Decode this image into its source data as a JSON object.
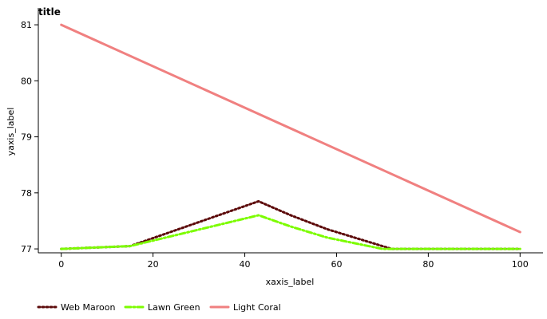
{
  "chart_data": {
    "type": "line",
    "title": "title",
    "xlabel": "xaxis_label",
    "ylabel": "yaxis_label",
    "xlim": [
      -5,
      105
    ],
    "ylim": [
      76.93,
      81.3
    ],
    "xticks": [
      0,
      20,
      40,
      60,
      80,
      100
    ],
    "yticks": [
      77,
      78,
      79,
      80,
      81
    ],
    "grid": false,
    "legend_position": "bottom",
    "series": [
      {
        "name": "Web Maroon",
        "color": "#5c0a0a",
        "style": "dotted",
        "x": [
          0,
          15,
          43,
          50,
          58,
          72,
          100
        ],
        "y": [
          77.0,
          77.05,
          77.85,
          77.6,
          77.35,
          77.0,
          77.0
        ]
      },
      {
        "name": "Lawn Green",
        "color": "#7cfc00",
        "style": "dashdot",
        "x": [
          0,
          15,
          43,
          50,
          58,
          70,
          100
        ],
        "y": [
          77.0,
          77.05,
          77.6,
          77.4,
          77.2,
          77.0,
          77.0
        ]
      },
      {
        "name": "Light Coral",
        "color": "#f08080",
        "style": "solid",
        "x": [
          0,
          100
        ],
        "y": [
          81.0,
          77.3
        ]
      }
    ]
  }
}
